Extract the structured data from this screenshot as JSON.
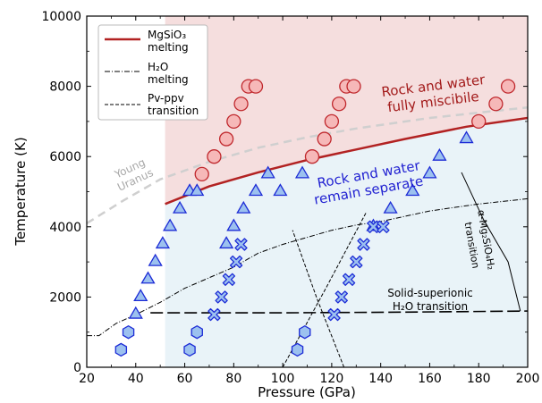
{
  "chart_data": {
    "type": "scatter",
    "xlabel": "Pressure (GPa)",
    "ylabel": "Temperature (K)",
    "xlim": [
      20,
      200
    ],
    "ylim": [
      0,
      10000
    ],
    "xticks": [
      "20",
      "40",
      "60",
      "80",
      "100",
      "120",
      "140",
      "160",
      "180",
      "200"
    ],
    "yticks": [
      "0",
      "2000",
      "4000",
      "6000",
      "8000",
      "10000"
    ],
    "colors": {
      "miscible_region": "#f5dede",
      "separate_region": "#e9f3f8",
      "melting_curve": "#b22222",
      "marker_blue_fill": "#9cc1ef",
      "marker_blue_edge": "#1c2bd6",
      "marker_red_fill": "#f6b8b8",
      "marker_red_edge": "#c0282d",
      "young_uranus": "#cfcfcf"
    },
    "legend": {
      "position": "top-left",
      "entries": [
        {
          "lines": [
            "MgSiO₃",
            "melting"
          ],
          "style": "solid-red"
        },
        {
          "lines": [
            "H₂O",
            "melting"
          ],
          "style": "dash-dot"
        },
        {
          "lines": [
            "Pv-ppv",
            "transition"
          ],
          "style": "dashed"
        }
      ]
    },
    "annotations": {
      "miscible": [
        "Rock and water",
        "fully miscibile"
      ],
      "separate": [
        "Rock and water",
        "remain separate"
      ],
      "uranus": [
        "Young",
        "Uranus"
      ],
      "alpha": [
        "α-Mg₂SiO₄H₂",
        "transition"
      ],
      "superionic": [
        "Solid-superionic",
        "H₂O transition"
      ]
    },
    "lines": {
      "mgsio3_melting": [
        [
          52,
          4650
        ],
        [
          70,
          5150
        ],
        [
          90,
          5550
        ],
        [
          110,
          5900
        ],
        [
          130,
          6200
        ],
        [
          150,
          6500
        ],
        [
          175,
          6850
        ],
        [
          200,
          7100
        ]
      ],
      "young_uranus": [
        [
          20,
          4100
        ],
        [
          35,
          4750
        ],
        [
          50,
          5350
        ],
        [
          70,
          5850
        ],
        [
          90,
          6250
        ],
        [
          110,
          6550
        ],
        [
          130,
          6800
        ],
        [
          160,
          7100
        ],
        [
          200,
          7400
        ]
      ],
      "h2o_melting": [
        [
          20,
          900
        ],
        [
          25,
          900
        ],
        [
          32,
          1250
        ],
        [
          40,
          1500
        ],
        [
          50,
          1850
        ],
        [
          60,
          2250
        ],
        [
          70,
          2550
        ],
        [
          80,
          2850
        ],
        [
          90,
          3250
        ],
        [
          100,
          3500
        ],
        [
          110,
          3700
        ],
        [
          120,
          3900
        ],
        [
          130,
          4050
        ],
        [
          140,
          4150
        ],
        [
          150,
          4300
        ],
        [
          160,
          4450
        ],
        [
          170,
          4550
        ],
        [
          180,
          4650
        ],
        [
          200,
          4800
        ]
      ],
      "pv_ppv_1": [
        [
          100,
          0
        ],
        [
          118,
          2300
        ],
        [
          134,
          4400
        ]
      ],
      "pv_ppv_2": [
        [
          125,
          0
        ],
        [
          114,
          1950
        ],
        [
          104,
          3900
        ]
      ],
      "superionic": [
        [
          46,
          1550
        ],
        [
          100,
          1550
        ],
        [
          150,
          1570
        ],
        [
          200,
          1600
        ]
      ],
      "alpha": [
        [
          173,
          5550
        ],
        [
          182,
          4200
        ],
        [
          192,
          3000
        ],
        [
          197,
          1600
        ]
      ]
    },
    "series": [
      {
        "marker": "hexagon",
        "x": [
          34,
          37,
          62,
          65,
          106,
          109
        ],
        "y": [
          500,
          1000,
          500,
          1000,
          500,
          1000
        ]
      },
      {
        "marker": "triangle",
        "x": [
          40,
          42,
          45,
          48,
          51,
          54,
          58,
          62,
          65,
          77,
          80,
          84,
          89,
          94,
          99,
          108,
          137,
          144,
          153,
          160,
          164,
          175
        ],
        "y": [
          1500,
          2000,
          2500,
          3000,
          3500,
          4000,
          4500,
          5000,
          5000,
          3500,
          4000,
          4500,
          5000,
          5500,
          5000,
          5500,
          4000,
          4500,
          5000,
          5500,
          6000,
          6500
        ]
      },
      {
        "marker": "x",
        "x": [
          72,
          75,
          78,
          81,
          83,
          121,
          124,
          127,
          130,
          133,
          137,
          141
        ],
        "y": [
          1500,
          2000,
          2500,
          3000,
          3500,
          1500,
          2000,
          2500,
          3000,
          3500,
          4000,
          4000
        ]
      },
      {
        "marker": "circle",
        "x": [
          67,
          72,
          77,
          80,
          83,
          86,
          89,
          112,
          117,
          120,
          123,
          126,
          129,
          180,
          187,
          192
        ],
        "y": [
          5500,
          6000,
          6500,
          7000,
          7500,
          8000,
          8000,
          6000,
          6500,
          7000,
          7500,
          8000,
          8000,
          7000,
          7500,
          8000
        ]
      }
    ]
  }
}
